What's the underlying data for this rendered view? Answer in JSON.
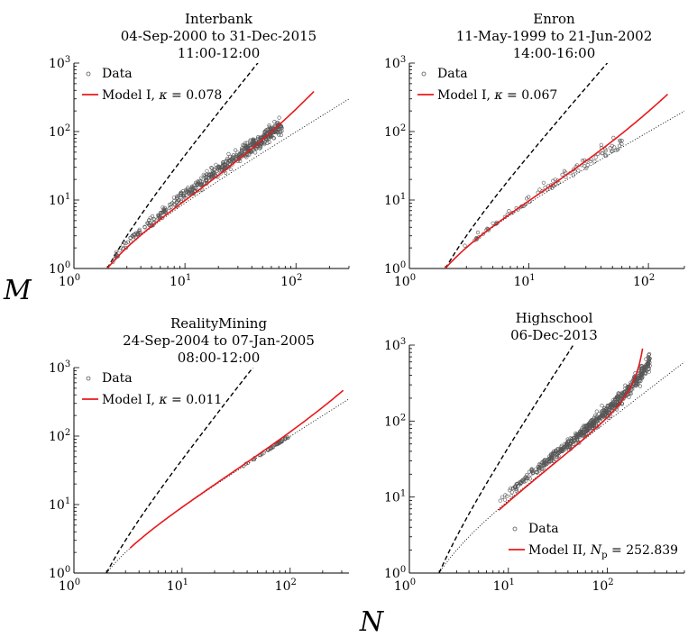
{
  "figure": {
    "ylabel": "M",
    "xlabel": "N",
    "colors": {
      "data": "#555555",
      "model": "#e8191c",
      "axis": "#000000"
    }
  },
  "chart_data": [
    {
      "type": "scatter",
      "title": [
        "Interbank",
        "04-Sep-2000 to 31-Dec-2015",
        "11:00-12:00"
      ],
      "xlim": [
        1,
        300
      ],
      "ylim": [
        1,
        1000
      ],
      "xscale": "log",
      "yscale": "log",
      "xticks": [
        {
          "base": "10",
          "exp": "0"
        },
        {
          "base": "10",
          "exp": "1"
        },
        {
          "base": "10",
          "exp": "2"
        }
      ],
      "yticks": [
        {
          "base": "10",
          "exp": "0"
        },
        {
          "base": "10",
          "exp": "1"
        },
        {
          "base": "10",
          "exp": "2"
        },
        {
          "base": "10",
          "exp": "3"
        }
      ],
      "legend": {
        "position": "top-left",
        "data_label": "Data",
        "model_label": "Model I, ",
        "param_symbol": "κ",
        "param_sub": "",
        "param_value": " = 0.078"
      },
      "model": {
        "type": "I",
        "kappa": 0.078,
        "x_range": [
          2,
          145
        ]
      },
      "data_cloud": {
        "x_range": [
          2,
          75
        ],
        "center_slope": 1.12,
        "spread_decades": 0.18,
        "n_points": 520
      }
    },
    {
      "type": "scatter",
      "title": [
        "Enron",
        "11-May-1999 to 21-Jun-2002",
        "14:00-16:00"
      ],
      "xlim": [
        1,
        200
      ],
      "ylim": [
        1,
        1000
      ],
      "xscale": "log",
      "yscale": "log",
      "xticks": [
        {
          "base": "10",
          "exp": "0"
        },
        {
          "base": "10",
          "exp": "1"
        },
        {
          "base": "10",
          "exp": "2"
        }
      ],
      "yticks": [
        {
          "base": "10",
          "exp": "0"
        },
        {
          "base": "10",
          "exp": "1"
        },
        {
          "base": "10",
          "exp": "2"
        },
        {
          "base": "10",
          "exp": "3"
        }
      ],
      "legend": {
        "position": "top-left",
        "data_label": "Data",
        "model_label": "Model I, ",
        "param_symbol": "κ",
        "param_sub": "",
        "param_value": " = 0.067"
      },
      "model": {
        "type": "I",
        "kappa": 0.067,
        "x_range": [
          2,
          145
        ]
      },
      "data_cloud": {
        "x_range": [
          2,
          60
        ],
        "center_slope": 1.05,
        "spread_decades": 0.16,
        "n_points": 90
      }
    },
    {
      "type": "scatter",
      "title": [
        "RealityMining",
        "24-Sep-2004 to 07-Jan-2005",
        "08:00-12:00"
      ],
      "xlim": [
        1,
        350
      ],
      "ylim": [
        1,
        1000
      ],
      "xscale": "log",
      "yscale": "log",
      "xticks": [
        {
          "base": "10",
          "exp": "0"
        },
        {
          "base": "10",
          "exp": "1"
        },
        {
          "base": "10",
          "exp": "2"
        }
      ],
      "yticks": [
        {
          "base": "10",
          "exp": "0"
        },
        {
          "base": "10",
          "exp": "1"
        },
        {
          "base": "10",
          "exp": "2"
        },
        {
          "base": "10",
          "exp": "3"
        }
      ],
      "legend": {
        "position": "top-left",
        "data_label": "Data",
        "model_label": "Model I, ",
        "param_symbol": "κ",
        "param_sub": "",
        "param_value": " = 0.011"
      },
      "model": {
        "type": "I",
        "kappa": 0.011,
        "x_range": [
          3.3,
          310
        ]
      },
      "data_cloud": {
        "x_range": [
          35,
          100
        ],
        "center_slope": 1.0,
        "spread_decades": 0.03,
        "n_points": 40
      }
    },
    {
      "type": "scatter",
      "title": [
        "Highschool",
        "06-Dec-2013"
      ],
      "xlim": [
        1,
        600
      ],
      "ylim": [
        1,
        1000
      ],
      "xscale": "log",
      "yscale": "log",
      "xticks": [
        {
          "base": "10",
          "exp": "0"
        },
        {
          "base": "10",
          "exp": "1"
        },
        {
          "base": "10",
          "exp": "2"
        }
      ],
      "yticks": [
        {
          "base": "10",
          "exp": "0"
        },
        {
          "base": "10",
          "exp": "1"
        },
        {
          "base": "10",
          "exp": "2"
        },
        {
          "base": "10",
          "exp": "3"
        }
      ],
      "legend": {
        "position": "bottom-right",
        "data_label": "Data",
        "model_label": "Model II, ",
        "param_symbol": "N",
        "param_sub": "p",
        "param_value": " = 252.839"
      },
      "model": {
        "type": "II",
        "Np": 252.839,
        "x_range": [
          8,
          250
        ]
      },
      "data_cloud": {
        "x_range": [
          8,
          270
        ],
        "center_slope": 1.2,
        "spread_decades": 0.15,
        "n_points": 620
      }
    }
  ]
}
